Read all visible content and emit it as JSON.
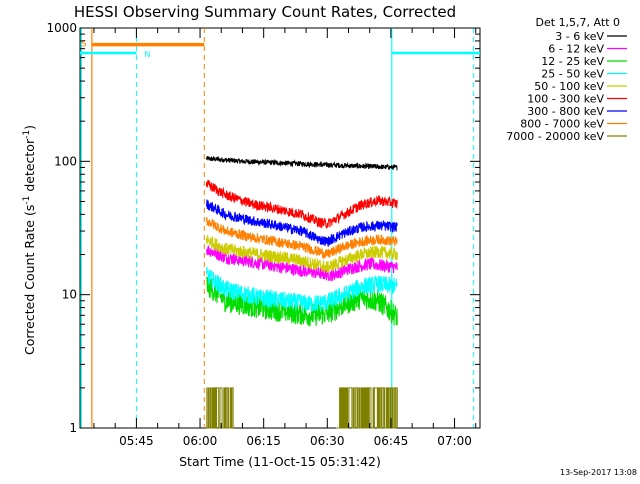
{
  "chart_data": {
    "type": "line",
    "title": "HESSI Observing Summary Count Rates, Corrected",
    "xlabel": "Start Time (11-Oct-15 05:31:42)",
    "ylabel_main": "Corrected Count Rate (s",
    "ylabel_sup1": "-1",
    "ylabel_mid": " detector",
    "ylabel_sup2": "-1",
    "ylabel_end": ")",
    "y_scale": "log",
    "ylim": [
      1,
      1000
    ],
    "xlim_minutes_since_0530": [
      1.7,
      96
    ],
    "x_ticks": [
      {
        "label": "05:45",
        "minute": 15
      },
      {
        "label": "06:00",
        "minute": 30
      },
      {
        "label": "06:15",
        "minute": 45
      },
      {
        "label": "06:30",
        "minute": 60
      },
      {
        "label": "06:45",
        "minute": 75
      },
      {
        "label": "07:00",
        "minute": 90
      }
    ],
    "y_ticks": [
      {
        "label": "1",
        "value": 1
      },
      {
        "label": "10",
        "value": 10
      },
      {
        "label": "100",
        "value": 100
      },
      {
        "label": "1000",
        "value": 1000
      }
    ],
    "legend_header": "Det 1,5,7, Att 0",
    "legend_placement": "right, outside plot",
    "data_start_minute": 31.5,
    "data_end_minute": 76.5,
    "series": [
      {
        "name": "3 - 6 keV",
        "color": "#000000",
        "profile": [
          [
            31.5,
            105
          ],
          [
            40,
            100
          ],
          [
            50,
            97
          ],
          [
            60,
            94
          ],
          [
            68,
            92
          ],
          [
            76.5,
            90
          ]
        ],
        "noise": 0.02
      },
      {
        "name": "6 - 12 keV",
        "color": "#ff00ff",
        "profile": [
          [
            31.5,
            22
          ],
          [
            36,
            19
          ],
          [
            45,
            17
          ],
          [
            52,
            15.5
          ],
          [
            58,
            14.5
          ],
          [
            61,
            14
          ],
          [
            66,
            16
          ],
          [
            70,
            17
          ],
          [
            76.5,
            16
          ]
        ],
        "noise": 0.05
      },
      {
        "name": "12 - 25 keV",
        "color": "#00dd00",
        "profile": [
          [
            31.5,
            12
          ],
          [
            36,
            9
          ],
          [
            44,
            8
          ],
          [
            50,
            7.5
          ],
          [
            56,
            7
          ],
          [
            60,
            7.2
          ],
          [
            64,
            8.5
          ],
          [
            68,
            9.5
          ],
          [
            72,
            9
          ],
          [
            74,
            8
          ],
          [
            76.5,
            6.8
          ]
        ],
        "noise": 0.09
      },
      {
        "name": "25 - 50 keV",
        "color": "#00ffff",
        "profile": [
          [
            31.5,
            14
          ],
          [
            36,
            11
          ],
          [
            44,
            9.5
          ],
          [
            50,
            9
          ],
          [
            56,
            8.5
          ],
          [
            60,
            8.8
          ],
          [
            64,
            10
          ],
          [
            68,
            11.5
          ],
          [
            72,
            12
          ],
          [
            76.5,
            11.5
          ]
        ],
        "noise": 0.07
      },
      {
        "name": "50 - 100 keV",
        "color": "#cccc00",
        "profile": [
          [
            31.5,
            26
          ],
          [
            36,
            22
          ],
          [
            44,
            20
          ],
          [
            52,
            18.5
          ],
          [
            57,
            17
          ],
          [
            60,
            16
          ],
          [
            64,
            18
          ],
          [
            68,
            20
          ],
          [
            72,
            21
          ],
          [
            76.5,
            20
          ]
        ],
        "noise": 0.05
      },
      {
        "name": "100 - 300 keV",
        "color": "#ff0000",
        "profile": [
          [
            31.5,
            68
          ],
          [
            36,
            56
          ],
          [
            42,
            48
          ],
          [
            48,
            44
          ],
          [
            54,
            40
          ],
          [
            58,
            35
          ],
          [
            60,
            34
          ],
          [
            64,
            40
          ],
          [
            68,
            47
          ],
          [
            72,
            51
          ],
          [
            76.5,
            48
          ]
        ],
        "noise": 0.04
      },
      {
        "name": "300 - 800 keV",
        "color": "#0000ff",
        "profile": [
          [
            31.5,
            48
          ],
          [
            36,
            40
          ],
          [
            42,
            36
          ],
          [
            48,
            33
          ],
          [
            54,
            30
          ],
          [
            58,
            26
          ],
          [
            60,
            25
          ],
          [
            64,
            29
          ],
          [
            68,
            32
          ],
          [
            72,
            33
          ],
          [
            76.5,
            32
          ]
        ],
        "noise": 0.04
      },
      {
        "name": "800 - 7000 keV",
        "color": "#ff8000",
        "profile": [
          [
            31.5,
            36
          ],
          [
            36,
            30
          ],
          [
            42,
            27
          ],
          [
            48,
            25
          ],
          [
            54,
            23
          ],
          [
            58,
            21
          ],
          [
            60,
            20
          ],
          [
            64,
            23
          ],
          [
            68,
            25
          ],
          [
            72,
            26
          ],
          [
            76.5,
            25
          ]
        ],
        "noise": 0.04
      },
      {
        "name": "7000 - 20000 keV",
        "color": "#808000",
        "bursts": [
          [
            31.5,
            38
          ],
          [
            62,
            76.5
          ]
        ],
        "burst_values": [
          1,
          2
        ]
      }
    ],
    "markers": {
      "saa_label": "S",
      "night_label": "N",
      "saa_color": "#ff8000",
      "night_color": "#00ffff",
      "saa_bar": [
        {
          "from": 4.5,
          "to": 31.0,
          "y": 750
        }
      ],
      "night_bars": [
        {
          "from": 1.7,
          "to": 15.0,
          "y": 650
        },
        {
          "from": 75.2,
          "to": 96,
          "y": 650
        }
      ],
      "solid_lines": [
        {
          "minute": 2.0,
          "color": "#00ffff"
        },
        {
          "minute": 4.5,
          "color": "#ff8000"
        },
        {
          "minute": 75.2,
          "color": "#00ffff"
        }
      ],
      "dashed_lines": [
        {
          "minute": 15.0,
          "color": "#00ffff"
        },
        {
          "minute": 31.0,
          "color": "#ff8000"
        },
        {
          "minute": 94.5,
          "color": "#00ffff"
        }
      ]
    }
  },
  "footer": {
    "timestamp": "13-Sep-2017 13:08"
  }
}
